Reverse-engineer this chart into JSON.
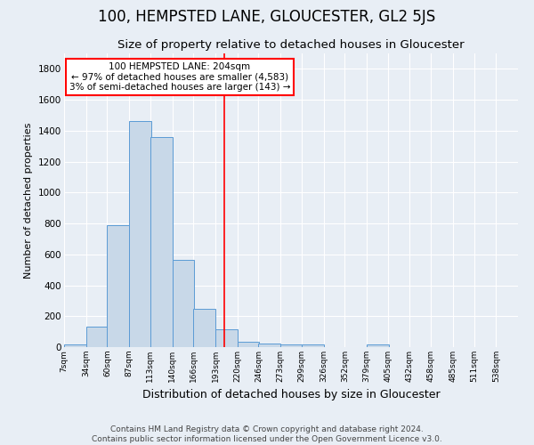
{
  "title": "100, HEMPSTED LANE, GLOUCESTER, GL2 5JS",
  "subtitle": "Size of property relative to detached houses in Gloucester",
  "xlabel": "Distribution of detached houses by size in Gloucester",
  "ylabel": "Number of detached properties",
  "bin_labels": [
    "7sqm",
    "34sqm",
    "60sqm",
    "87sqm",
    "113sqm",
    "140sqm",
    "166sqm",
    "193sqm",
    "220sqm",
    "246sqm",
    "273sqm",
    "299sqm",
    "326sqm",
    "352sqm",
    "379sqm",
    "405sqm",
    "432sqm",
    "458sqm",
    "485sqm",
    "511sqm",
    "538sqm"
  ],
  "bin_edges": [
    7,
    34,
    60,
    87,
    113,
    140,
    166,
    193,
    220,
    246,
    273,
    299,
    326,
    352,
    379,
    405,
    432,
    458,
    485,
    511,
    538
  ],
  "bar_heights": [
    20,
    135,
    790,
    1465,
    1360,
    565,
    250,
    115,
    35,
    25,
    15,
    20,
    0,
    0,
    20,
    0,
    0,
    0,
    0,
    0,
    0
  ],
  "bar_color": "#c8d8e8",
  "bar_edge_color": "#5b9bd5",
  "red_line_x": 204,
  "annotation_line1": "100 HEMPSTED LANE: 204sqm",
  "annotation_line2": "← 97% of detached houses are smaller (4,583)",
  "annotation_line3": "3% of semi-detached houses are larger (143) →",
  "footer1": "Contains HM Land Registry data © Crown copyright and database right 2024.",
  "footer2": "Contains public sector information licensed under the Open Government Licence v3.0.",
  "ylim": [
    0,
    1900
  ],
  "bg_color": "#e8eef5",
  "plot_bg_color": "#e8eef5",
  "title_fontsize": 12,
  "subtitle_fontsize": 9.5,
  "xlabel_fontsize": 9,
  "ylabel_fontsize": 8,
  "footer_fontsize": 6.5,
  "annot_fontsize": 7.5
}
